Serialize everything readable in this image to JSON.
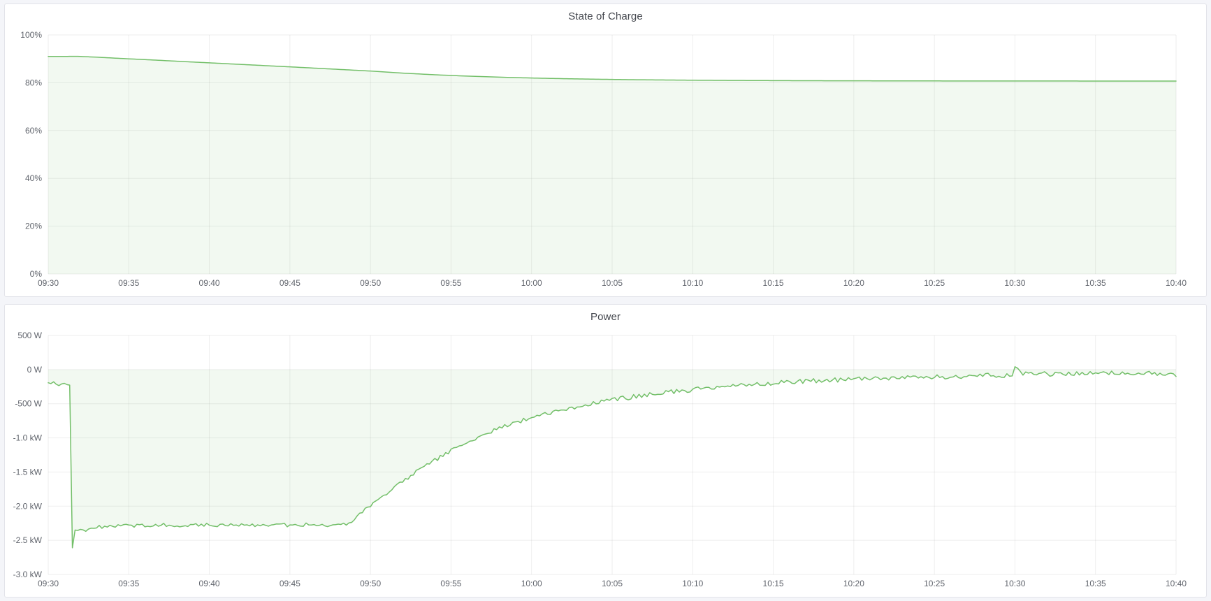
{
  "page": {
    "background_color": "#f4f5f9",
    "panel_background_color": "#ffffff",
    "panel_border_color": "#e2e3e9",
    "accent_green": "#73bf69"
  },
  "chart_data": [
    {
      "type": "area",
      "title": "State of Charge",
      "line_color": "#73bf69",
      "fill_color": "#73bf69",
      "fill_opacity": 0.09,
      "legend": "none",
      "grid": true,
      "x_range_minutes_after_0930": [
        0,
        70
      ],
      "y_range": [
        100,
        0
      ],
      "baseline": 0,
      "x_ticks": [
        {
          "t": 0,
          "label": "09:30"
        },
        {
          "t": 5,
          "label": "09:35"
        },
        {
          "t": 10,
          "label": "09:40"
        },
        {
          "t": 15,
          "label": "09:45"
        },
        {
          "t": 20,
          "label": "09:50"
        },
        {
          "t": 25,
          "label": "09:55"
        },
        {
          "t": 30,
          "label": "10:00"
        },
        {
          "t": 35,
          "label": "10:05"
        },
        {
          "t": 40,
          "label": "10:10"
        },
        {
          "t": 45,
          "label": "10:15"
        },
        {
          "t": 50,
          "label": "10:20"
        },
        {
          "t": 55,
          "label": "10:25"
        },
        {
          "t": 60,
          "label": "10:30"
        },
        {
          "t": 65,
          "label": "10:35"
        },
        {
          "t": 70,
          "label": "10:40"
        }
      ],
      "y_ticks": [
        {
          "v": 100,
          "label": "100%"
        },
        {
          "v": 80,
          "label": "80%"
        },
        {
          "v": 60,
          "label": "60%"
        },
        {
          "v": 40,
          "label": "40%"
        },
        {
          "v": 20,
          "label": "20%"
        },
        {
          "v": 0,
          "label": "0%"
        }
      ],
      "unit": "percent",
      "noise": [
        [
          0,
          0
        ]
      ],
      "points": [
        [
          0,
          91.0
        ],
        [
          1,
          91.02
        ],
        [
          1.8,
          91.05
        ],
        [
          3,
          90.7
        ],
        [
          4,
          90.35
        ],
        [
          5,
          90.0
        ],
        [
          6,
          89.68
        ],
        [
          7,
          89.35
        ],
        [
          8,
          89.0
        ],
        [
          9,
          88.66
        ],
        [
          10,
          88.33
        ],
        [
          11,
          88.0
        ],
        [
          12,
          87.65
        ],
        [
          13,
          87.32
        ],
        [
          14,
          86.98
        ],
        [
          15,
          86.65
        ],
        [
          16,
          86.3
        ],
        [
          17,
          85.95
        ],
        [
          18,
          85.6
        ],
        [
          19,
          85.25
        ],
        [
          20,
          84.9
        ],
        [
          22,
          84.03
        ],
        [
          24,
          83.33
        ],
        [
          26,
          82.77
        ],
        [
          28,
          82.33
        ],
        [
          30,
          81.98
        ],
        [
          32,
          81.7
        ],
        [
          34,
          81.48
        ],
        [
          36,
          81.3
        ],
        [
          38,
          81.17
        ],
        [
          40,
          81.06
        ],
        [
          42,
          80.98
        ],
        [
          44,
          80.92
        ],
        [
          46,
          80.87
        ],
        [
          48,
          80.83
        ],
        [
          50,
          80.81
        ],
        [
          52,
          80.78
        ],
        [
          54,
          80.77
        ],
        [
          56,
          80.75
        ],
        [
          58,
          80.74
        ],
        [
          60,
          80.74
        ],
        [
          62,
          80.73
        ],
        [
          64,
          80.72
        ],
        [
          66,
          80.72
        ],
        [
          68,
          80.71
        ],
        [
          70,
          80.71
        ]
      ]
    },
    {
      "type": "area",
      "title": "Power",
      "line_color": "#73bf69",
      "fill_color": "#73bf69",
      "fill_opacity": 0.09,
      "legend": "none",
      "grid": true,
      "x_range_minutes_after_0930": [
        0,
        70
      ],
      "y_range": [
        500,
        -3000
      ],
      "baseline": 0,
      "x_ticks": [
        {
          "t": 0,
          "label": "09:30"
        },
        {
          "t": 5,
          "label": "09:35"
        },
        {
          "t": 10,
          "label": "09:40"
        },
        {
          "t": 15,
          "label": "09:45"
        },
        {
          "t": 20,
          "label": "09:50"
        },
        {
          "t": 25,
          "label": "09:55"
        },
        {
          "t": 30,
          "label": "10:00"
        },
        {
          "t": 35,
          "label": "10:05"
        },
        {
          "t": 40,
          "label": "10:10"
        },
        {
          "t": 45,
          "label": "10:15"
        },
        {
          "t": 50,
          "label": "10:20"
        },
        {
          "t": 55,
          "label": "10:25"
        },
        {
          "t": 60,
          "label": "10:30"
        },
        {
          "t": 65,
          "label": "10:35"
        },
        {
          "t": 70,
          "label": "10:40"
        }
      ],
      "y_ticks": [
        {
          "v": 500,
          "label": "500 W"
        },
        {
          "v": 0,
          "label": "0 W"
        },
        {
          "v": -500,
          "label": "-500 W"
        },
        {
          "v": -1000,
          "label": "-1.0 kW"
        },
        {
          "v": -1500,
          "label": "-1.5 kW"
        },
        {
          "v": -2000,
          "label": "-2.0 kW"
        },
        {
          "v": -2500,
          "label": "-2.5 kW"
        },
        {
          "v": -3000,
          "label": "-3.0 kW"
        }
      ],
      "unit": "watt",
      "noise": [
        [
          0,
          18
        ],
        [
          1.45,
          0
        ],
        [
          1.8,
          22
        ],
        [
          3,
          26
        ],
        [
          18.5,
          25
        ],
        [
          22,
          30
        ],
        [
          35,
          34
        ],
        [
          50,
          36
        ]
      ],
      "points": [
        [
          0,
          -210
        ],
        [
          0.3,
          -185
        ],
        [
          0.6,
          -230
        ],
        [
          1.0,
          -200
        ],
        [
          1.2,
          -225
        ],
        [
          1.4,
          -215
        ],
        [
          1.5,
          -2610
        ],
        [
          1.6,
          -2340
        ],
        [
          1.8,
          -2370
        ],
        [
          2.0,
          -2330
        ],
        [
          2.3,
          -2360
        ],
        [
          2.6,
          -2320
        ],
        [
          3.0,
          -2310
        ],
        [
          3.5,
          -2300
        ],
        [
          4,
          -2290
        ],
        [
          5,
          -2280
        ],
        [
          6,
          -2290
        ],
        [
          7,
          -2270
        ],
        [
          8,
          -2280
        ],
        [
          9,
          -2270
        ],
        [
          10,
          -2275
        ],
        [
          11,
          -2285
        ],
        [
          12,
          -2265
        ],
        [
          13,
          -2275
        ],
        [
          14,
          -2270
        ],
        [
          15,
          -2280
        ],
        [
          16,
          -2270
        ],
        [
          17,
          -2275
        ],
        [
          18,
          -2280
        ],
        [
          18.6,
          -2265
        ],
        [
          19.2,
          -2150
        ],
        [
          19.6,
          -2060
        ],
        [
          20,
          -1990
        ],
        [
          20.5,
          -1900
        ],
        [
          21,
          -1810
        ],
        [
          21.5,
          -1730
        ],
        [
          22,
          -1630
        ],
        [
          22.5,
          -1555
        ],
        [
          23,
          -1480
        ],
        [
          23.5,
          -1405
        ],
        [
          24,
          -1330
        ],
        [
          24.5,
          -1255
        ],
        [
          25,
          -1185
        ],
        [
          25.5,
          -1125
        ],
        [
          26,
          -1065
        ],
        [
          26.5,
          -1010
        ],
        [
          27,
          -955
        ],
        [
          27.5,
          -905
        ],
        [
          28,
          -860
        ],
        [
          28.5,
          -815
        ],
        [
          29,
          -775
        ],
        [
          29.5,
          -740
        ],
        [
          30,
          -705
        ],
        [
          30.5,
          -670
        ],
        [
          31,
          -640
        ],
        [
          31.5,
          -612
        ],
        [
          32,
          -585
        ],
        [
          32.5,
          -560
        ],
        [
          33,
          -535
        ],
        [
          33.5,
          -512
        ],
        [
          34,
          -490
        ],
        [
          34.5,
          -468
        ],
        [
          35,
          -448
        ],
        [
          36,
          -410
        ],
        [
          37,
          -375
        ],
        [
          38,
          -345
        ],
        [
          39,
          -318
        ],
        [
          40,
          -292
        ],
        [
          41,
          -268
        ],
        [
          42,
          -248
        ],
        [
          43,
          -230
        ],
        [
          44,
          -213
        ],
        [
          45,
          -198
        ],
        [
          46,
          -185
        ],
        [
          47,
          -172
        ],
        [
          48,
          -162
        ],
        [
          49,
          -152
        ],
        [
          50,
          -143
        ],
        [
          51,
          -135
        ],
        [
          52,
          -127
        ],
        [
          53,
          -120
        ],
        [
          54,
          -113
        ],
        [
          55,
          -107
        ],
        [
          56,
          -101
        ],
        [
          57,
          -96
        ],
        [
          58,
          -91
        ],
        [
          59,
          -87
        ],
        [
          59.8,
          -83
        ],
        [
          60,
          45
        ],
        [
          60.3,
          -55
        ],
        [
          61,
          -68
        ],
        [
          62,
          -62
        ],
        [
          63,
          -68
        ],
        [
          64,
          -58
        ],
        [
          65,
          -64
        ],
        [
          66,
          -54
        ],
        [
          67,
          -60
        ],
        [
          68,
          -52
        ],
        [
          69,
          -58
        ],
        [
          70,
          -65
        ]
      ]
    }
  ]
}
